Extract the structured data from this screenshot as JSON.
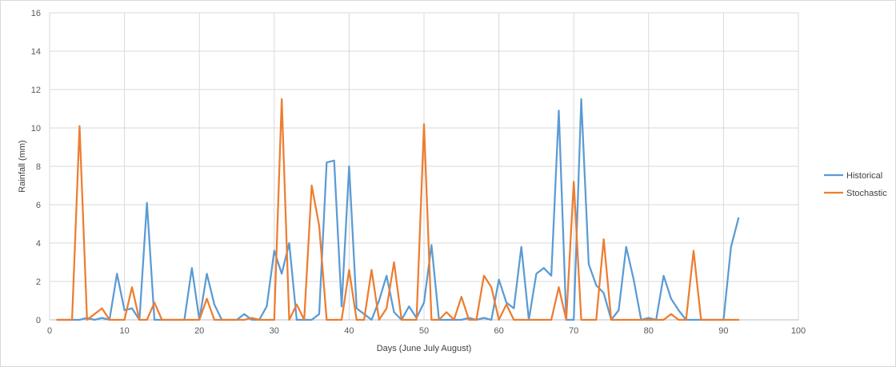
{
  "chart_data": {
    "type": "line",
    "title": "",
    "xlabel": "Days (June July August)",
    "ylabel": "Rainfall (mm)",
    "xlim": [
      0,
      100
    ],
    "ylim": [
      0,
      16
    ],
    "x_ticks": [
      "0",
      "10",
      "20",
      "30",
      "40",
      "50",
      "60",
      "70",
      "80",
      "90",
      "100"
    ],
    "y_ticks": [
      "0",
      "2",
      "4",
      "6",
      "8",
      "10",
      "12",
      "14",
      "16"
    ],
    "grid": true,
    "legend_position": "right",
    "x": [
      1,
      2,
      3,
      4,
      5,
      6,
      7,
      8,
      9,
      10,
      11,
      12,
      13,
      14,
      15,
      16,
      17,
      18,
      19,
      20,
      21,
      22,
      23,
      24,
      25,
      26,
      27,
      28,
      29,
      30,
      31,
      32,
      33,
      34,
      35,
      36,
      37,
      38,
      39,
      40,
      41,
      42,
      43,
      44,
      45,
      46,
      47,
      48,
      49,
      50,
      51,
      52,
      53,
      54,
      55,
      56,
      57,
      58,
      59,
      60,
      61,
      62,
      63,
      64,
      65,
      66,
      67,
      68,
      69,
      70,
      71,
      72,
      73,
      74,
      75,
      76,
      77,
      78,
      79,
      80,
      81,
      82,
      83,
      84,
      85,
      86,
      87,
      88,
      89,
      90,
      91,
      92
    ],
    "series": [
      {
        "name": "Historical",
        "color": "#5b9bd5",
        "values": [
          0,
          0,
          0,
          0,
          0.1,
          0,
          0.1,
          0,
          2.4,
          0.5,
          0.6,
          0,
          6.1,
          0,
          0,
          0,
          0,
          0,
          2.7,
          0,
          2.4,
          0.8,
          0,
          0,
          0,
          0.3,
          0,
          0,
          0.7,
          3.6,
          2.4,
          4,
          0,
          0,
          0,
          0.3,
          8.2,
          8.3,
          0.7,
          8,
          0.6,
          0.3,
          0,
          1,
          2.3,
          0.4,
          0,
          0.7,
          0.1,
          0.9,
          3.9,
          0,
          0,
          0,
          0,
          0.1,
          0,
          0.1,
          0,
          2.1,
          0.9,
          0.6,
          3.8,
          0,
          2.4,
          2.7,
          2.3,
          10.9,
          0,
          0,
          11.5,
          2.9,
          1.8,
          1.4,
          0,
          0.5,
          3.8,
          2.1,
          0,
          0.1,
          0,
          2.3,
          1.1,
          0.5,
          0,
          0,
          0,
          0,
          0,
          0,
          3.8,
          5.3
        ]
      },
      {
        "name": "Stochastic",
        "color": "#ed7d31",
        "values": [
          0,
          0,
          0,
          10.1,
          0,
          0.3,
          0.6,
          0,
          0,
          0,
          1.7,
          0,
          0,
          0.9,
          0,
          0,
          0,
          0,
          0,
          0,
          1.1,
          0,
          0,
          0,
          0,
          0,
          0.1,
          0,
          0,
          0,
          11.5,
          0,
          0.8,
          0,
          7,
          4.9,
          0,
          0,
          0,
          2.6,
          0,
          0,
          2.6,
          0,
          0.6,
          3,
          0,
          0,
          0,
          10.2,
          0,
          0,
          0.4,
          0,
          1.2,
          0,
          0,
          2.3,
          1.7,
          0,
          0.8,
          0,
          0,
          0,
          0,
          0,
          0,
          1.7,
          0,
          7.2,
          0,
          0,
          0,
          4.2,
          0,
          0,
          0,
          0,
          0,
          0,
          0,
          0,
          0.3,
          0,
          0,
          3.6,
          0,
          0,
          0,
          0,
          0,
          0
        ]
      }
    ]
  }
}
